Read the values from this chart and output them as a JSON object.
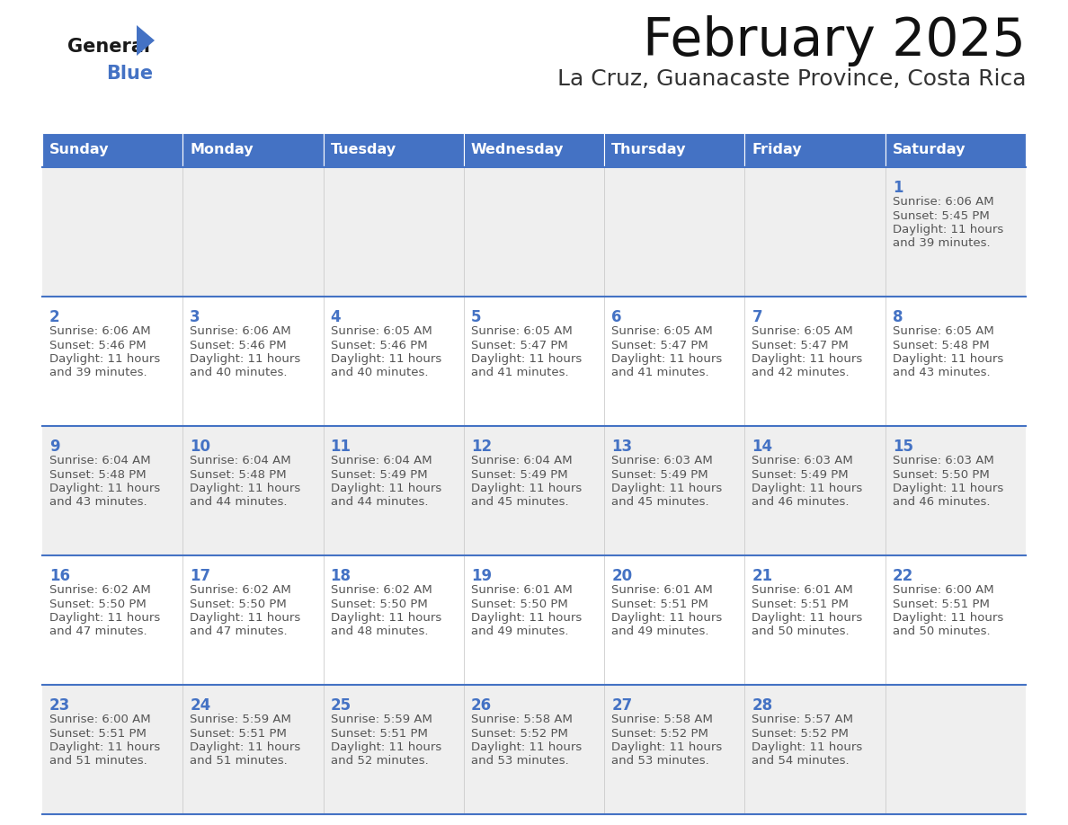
{
  "title": "February 2025",
  "subtitle": "La Cruz, Guanacaste Province, Costa Rica",
  "header_bg": "#4472C4",
  "header_text": "#FFFFFF",
  "header_days": [
    "Sunday",
    "Monday",
    "Tuesday",
    "Wednesday",
    "Thursday",
    "Friday",
    "Saturday"
  ],
  "row_bg_odd": "#EFEFEF",
  "row_bg_even": "#FFFFFF",
  "cell_border": "#4472C4",
  "day_number_color": "#4472C4",
  "text_color": "#555555",
  "logo_general_color": "#1a1a1a",
  "logo_blue_color": "#4472C4",
  "days": [
    {
      "day": 1,
      "col": 6,
      "row": 0,
      "sunrise": "6:06 AM",
      "sunset": "5:45 PM",
      "daylight": "11 hours and 39 minutes."
    },
    {
      "day": 2,
      "col": 0,
      "row": 1,
      "sunrise": "6:06 AM",
      "sunset": "5:46 PM",
      "daylight": "11 hours and 39 minutes."
    },
    {
      "day": 3,
      "col": 1,
      "row": 1,
      "sunrise": "6:06 AM",
      "sunset": "5:46 PM",
      "daylight": "11 hours and 40 minutes."
    },
    {
      "day": 4,
      "col": 2,
      "row": 1,
      "sunrise": "6:05 AM",
      "sunset": "5:46 PM",
      "daylight": "11 hours and 40 minutes."
    },
    {
      "day": 5,
      "col": 3,
      "row": 1,
      "sunrise": "6:05 AM",
      "sunset": "5:47 PM",
      "daylight": "11 hours and 41 minutes."
    },
    {
      "day": 6,
      "col": 4,
      "row": 1,
      "sunrise": "6:05 AM",
      "sunset": "5:47 PM",
      "daylight": "11 hours and 41 minutes."
    },
    {
      "day": 7,
      "col": 5,
      "row": 1,
      "sunrise": "6:05 AM",
      "sunset": "5:47 PM",
      "daylight": "11 hours and 42 minutes."
    },
    {
      "day": 8,
      "col": 6,
      "row": 1,
      "sunrise": "6:05 AM",
      "sunset": "5:48 PM",
      "daylight": "11 hours and 43 minutes."
    },
    {
      "day": 9,
      "col": 0,
      "row": 2,
      "sunrise": "6:04 AM",
      "sunset": "5:48 PM",
      "daylight": "11 hours and 43 minutes."
    },
    {
      "day": 10,
      "col": 1,
      "row": 2,
      "sunrise": "6:04 AM",
      "sunset": "5:48 PM",
      "daylight": "11 hours and 44 minutes."
    },
    {
      "day": 11,
      "col": 2,
      "row": 2,
      "sunrise": "6:04 AM",
      "sunset": "5:49 PM",
      "daylight": "11 hours and 44 minutes."
    },
    {
      "day": 12,
      "col": 3,
      "row": 2,
      "sunrise": "6:04 AM",
      "sunset": "5:49 PM",
      "daylight": "11 hours and 45 minutes."
    },
    {
      "day": 13,
      "col": 4,
      "row": 2,
      "sunrise": "6:03 AM",
      "sunset": "5:49 PM",
      "daylight": "11 hours and 45 minutes."
    },
    {
      "day": 14,
      "col": 5,
      "row": 2,
      "sunrise": "6:03 AM",
      "sunset": "5:49 PM",
      "daylight": "11 hours and 46 minutes."
    },
    {
      "day": 15,
      "col": 6,
      "row": 2,
      "sunrise": "6:03 AM",
      "sunset": "5:50 PM",
      "daylight": "11 hours and 46 minutes."
    },
    {
      "day": 16,
      "col": 0,
      "row": 3,
      "sunrise": "6:02 AM",
      "sunset": "5:50 PM",
      "daylight": "11 hours and 47 minutes."
    },
    {
      "day": 17,
      "col": 1,
      "row": 3,
      "sunrise": "6:02 AM",
      "sunset": "5:50 PM",
      "daylight": "11 hours and 47 minutes."
    },
    {
      "day": 18,
      "col": 2,
      "row": 3,
      "sunrise": "6:02 AM",
      "sunset": "5:50 PM",
      "daylight": "11 hours and 48 minutes."
    },
    {
      "day": 19,
      "col": 3,
      "row": 3,
      "sunrise": "6:01 AM",
      "sunset": "5:50 PM",
      "daylight": "11 hours and 49 minutes."
    },
    {
      "day": 20,
      "col": 4,
      "row": 3,
      "sunrise": "6:01 AM",
      "sunset": "5:51 PM",
      "daylight": "11 hours and 49 minutes."
    },
    {
      "day": 21,
      "col": 5,
      "row": 3,
      "sunrise": "6:01 AM",
      "sunset": "5:51 PM",
      "daylight": "11 hours and 50 minutes."
    },
    {
      "day": 22,
      "col": 6,
      "row": 3,
      "sunrise": "6:00 AM",
      "sunset": "5:51 PM",
      "daylight": "11 hours and 50 minutes."
    },
    {
      "day": 23,
      "col": 0,
      "row": 4,
      "sunrise": "6:00 AM",
      "sunset": "5:51 PM",
      "daylight": "11 hours and 51 minutes."
    },
    {
      "day": 24,
      "col": 1,
      "row": 4,
      "sunrise": "5:59 AM",
      "sunset": "5:51 PM",
      "daylight": "11 hours and 51 minutes."
    },
    {
      "day": 25,
      "col": 2,
      "row": 4,
      "sunrise": "5:59 AM",
      "sunset": "5:51 PM",
      "daylight": "11 hours and 52 minutes."
    },
    {
      "day": 26,
      "col": 3,
      "row": 4,
      "sunrise": "5:58 AM",
      "sunset": "5:52 PM",
      "daylight": "11 hours and 53 minutes."
    },
    {
      "day": 27,
      "col": 4,
      "row": 4,
      "sunrise": "5:58 AM",
      "sunset": "5:52 PM",
      "daylight": "11 hours and 53 minutes."
    },
    {
      "day": 28,
      "col": 5,
      "row": 4,
      "sunrise": "5:57 AM",
      "sunset": "5:52 PM",
      "daylight": "11 hours and 54 minutes."
    }
  ]
}
